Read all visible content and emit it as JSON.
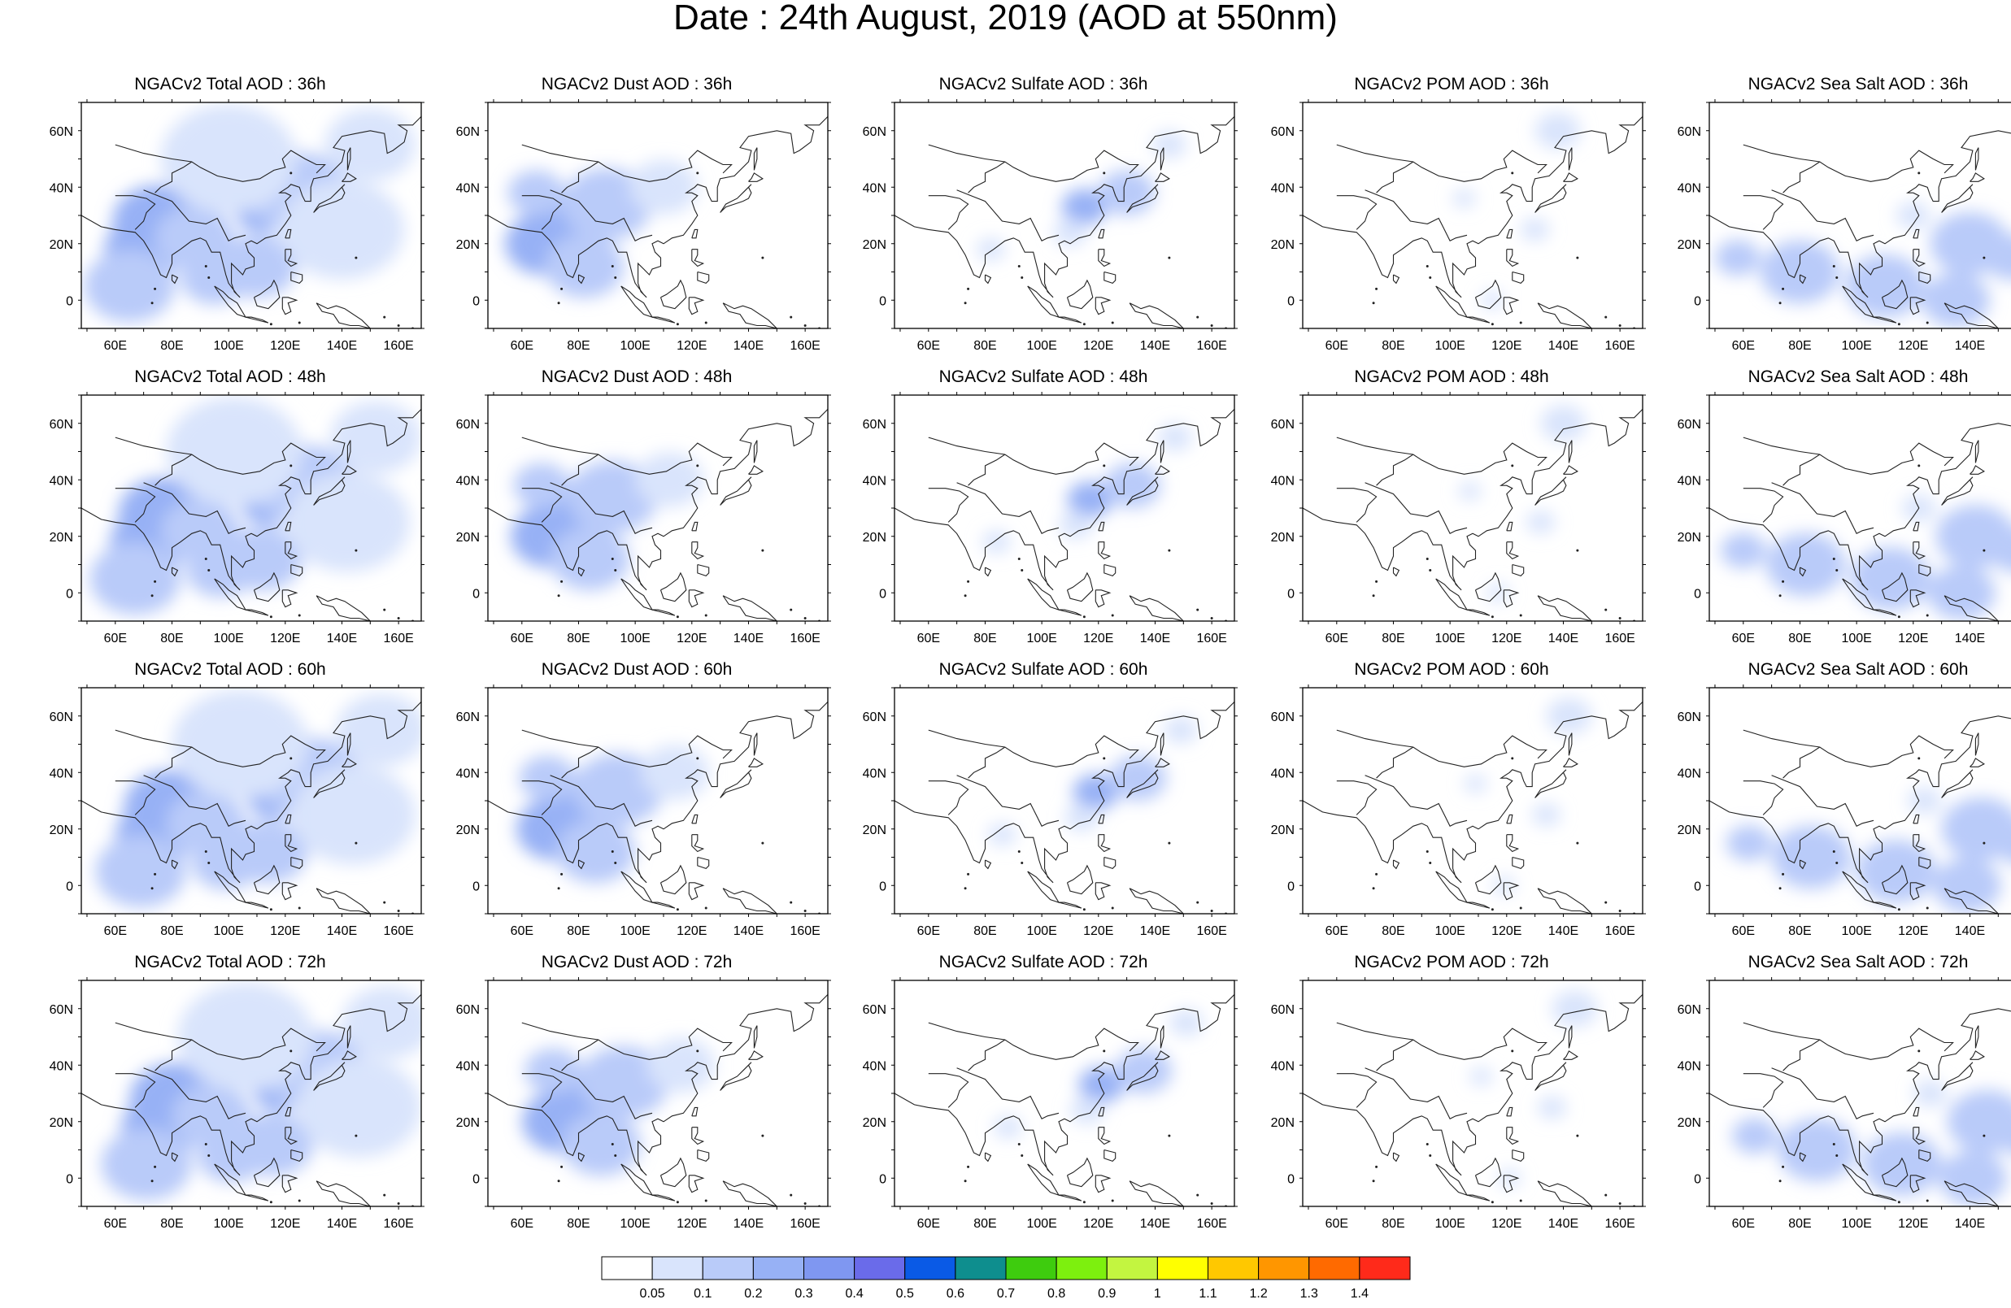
{
  "title": "Date : 24th August, 2019 (AOD at 550nm)",
  "panels": [
    [
      "NGACv2 Total AOD : 36h",
      "NGACv2 Dust AOD : 36h",
      "NGACv2 Sulfate AOD : 36h",
      "NGACv2 POM AOD : 36h",
      "NGACv2 Sea Salt AOD : 36h"
    ],
    [
      "NGACv2 Total AOD : 48h",
      "NGACv2 Dust AOD : 48h",
      "NGACv2 Sulfate AOD : 48h",
      "NGACv2 POM AOD : 48h",
      "NGACv2 Sea Salt AOD : 48h"
    ],
    [
      "NGACv2 Total AOD : 60h",
      "NGACv2 Dust AOD : 60h",
      "NGACv2 Sulfate AOD : 60h",
      "NGACv2 POM AOD : 60h",
      "NGACv2 Sea Salt AOD : 60h"
    ],
    [
      "NGACv2 Total AOD : 72h",
      "NGACv2 Dust AOD : 72h",
      "NGACv2 Sulfate AOD : 72h",
      "NGACv2 POM AOD : 72h",
      "NGACv2 Sea Salt  AOD : 72h"
    ]
  ],
  "map": {
    "lon_labels": [
      "60E",
      "80E",
      "100E",
      "120E",
      "140E",
      "160E"
    ],
    "lon_values": [
      60,
      80,
      100,
      120,
      140,
      160
    ],
    "lat_labels": [
      "60N",
      "40N",
      "20N",
      "0"
    ],
    "lat_values": [
      60,
      40,
      20,
      0
    ],
    "lon_range": [
      48,
      168
    ],
    "lat_range": [
      -10,
      70
    ]
  },
  "colorbar": {
    "labels": [
      "0.05",
      "0.1",
      "0.2",
      "0.3",
      "0.4",
      "0.5",
      "0.6",
      "0.7",
      "0.8",
      "0.9",
      "1",
      "1.1",
      "1.2",
      "1.3",
      "1.4"
    ],
    "colors": [
      "#ffffff",
      "#d9e4fc",
      "#b9cbf9",
      "#97b1f5",
      "#7f97f1",
      "#6a6bea",
      "#0a5ae6",
      "#0e8e8e",
      "#3ecc0e",
      "#7df00e",
      "#c3f540",
      "#ffff00",
      "#ffc800",
      "#ff9600",
      "#ff6a00",
      "#ff2a1a"
    ]
  }
}
